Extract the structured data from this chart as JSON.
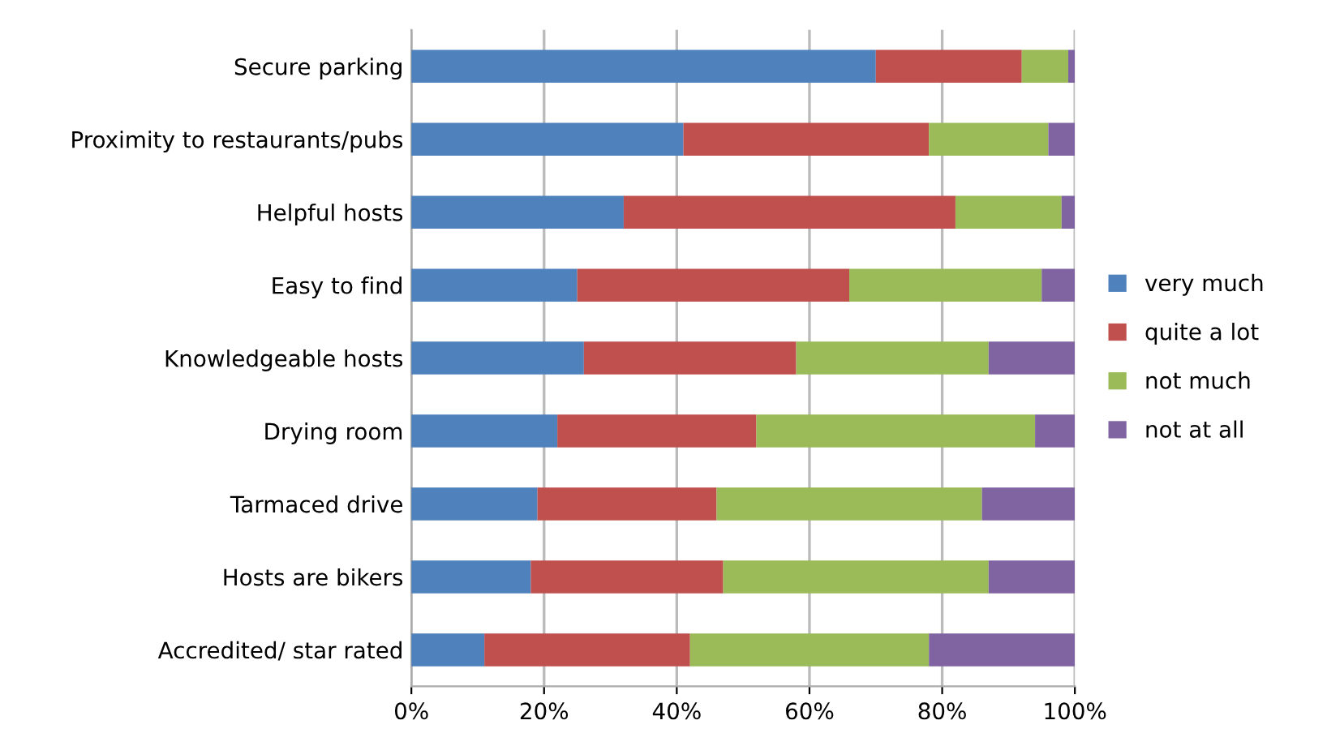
{
  "chart_data": {
    "type": "bar",
    "orientation": "horizontal",
    "stacked": true,
    "categories": [
      "Secure parking",
      "Proximity to restaurants/pubs",
      "Helpful hosts",
      "Easy to find",
      "Knowledgeable hosts",
      "Drying room",
      "Tarmaced drive",
      "Hosts are bikers",
      "Accredited/ star rated"
    ],
    "series": [
      {
        "name": "very much",
        "color": "#4f81bd",
        "values": [
          70,
          41,
          32,
          25,
          26,
          22,
          19,
          18,
          11
        ]
      },
      {
        "name": "quite a lot",
        "color": "#c0504d",
        "values": [
          22,
          37,
          50,
          41,
          32,
          30,
          27,
          29,
          31
        ]
      },
      {
        "name": "not much",
        "color": "#9bbb59",
        "values": [
          7,
          18,
          16,
          29,
          29,
          42,
          40,
          40,
          36
        ]
      },
      {
        "name": "not at all",
        "color": "#8064a2",
        "values": [
          1,
          4,
          2,
          5,
          13,
          6,
          14,
          13,
          22
        ]
      }
    ],
    "xlim": [
      0,
      100
    ],
    "xticks": [
      {
        "value": 0,
        "label": "0%"
      },
      {
        "value": 20,
        "label": "20%"
      },
      {
        "value": 40,
        "label": "40%"
      },
      {
        "value": 60,
        "label": "60%"
      },
      {
        "value": 80,
        "label": "80%"
      },
      {
        "value": 100,
        "label": "100%"
      }
    ],
    "grid": "x",
    "legend": "right"
  }
}
